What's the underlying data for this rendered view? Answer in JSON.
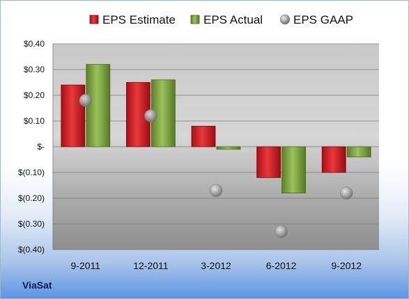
{
  "company": "ViaSat",
  "chart_data": {
    "type": "bar",
    "categories": [
      "9-2011",
      "12-2011",
      "3-2012",
      "6-2012",
      "9-2012"
    ],
    "series": [
      {
        "name": "EPS Estimate",
        "type": "bar",
        "color": "#d11f24",
        "values": [
          0.24,
          0.25,
          0.08,
          -0.12,
          -0.1
        ]
      },
      {
        "name": "EPS Actual",
        "type": "bar",
        "color": "#7ba23f",
        "values": [
          0.32,
          0.26,
          -0.01,
          -0.18,
          -0.04
        ]
      },
      {
        "name": "EPS GAAP",
        "type": "scatter",
        "color": "#a8a8a8",
        "values": [
          0.18,
          0.12,
          -0.17,
          -0.33,
          -0.18
        ]
      }
    ],
    "ylim": [
      -0.4,
      0.4
    ],
    "yticks": [
      0.4,
      0.3,
      0.2,
      0.1,
      0,
      -0.1,
      -0.2,
      -0.3,
      -0.4
    ],
    "ytick_labels": [
      "$0.40",
      "$0.30",
      "$0.20",
      "$0.10",
      "$-",
      "$(0.10)",
      "$(0.20)",
      "$(0.30)",
      "$(0.40)"
    ],
    "grid": true,
    "legend_position": "top"
  }
}
